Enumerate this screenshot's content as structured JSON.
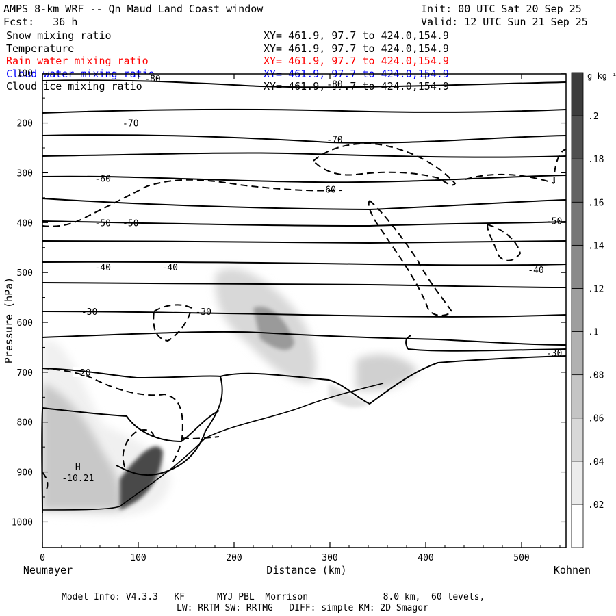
{
  "header": {
    "title": "AMPS 8-km WRF -- Qn Maud Land Coast window",
    "init": "Init: 00 UTC Sat 20 Sep 25",
    "forecast": "Fcst:   36 h",
    "valid": "Valid: 12 UTC Sun 21 Sep 25"
  },
  "fields": [
    {
      "name": "Snow mixing ratio",
      "xy": "XY= 461.9, 97.7 to 424.0,154.9",
      "color": "#000000"
    },
    {
      "name": "Temperature",
      "xy": "XY= 461.9, 97.7 to 424.0,154.9",
      "color": "#000000"
    },
    {
      "name": "Rain water mixing ratio",
      "xy": "XY= 461.9, 97.7 to 424.0,154.9",
      "color": "#ff0000"
    },
    {
      "name": "Cloud water mixing ratio",
      "xy": "XY= 461.9, 97.7 to 424.0,154.9",
      "color": "#0000ff"
    },
    {
      "name": "Cloud ice mixing ratio",
      "xy": "XY= 461.9, 97.7 to 424.0,154.9",
      "color": "#000000"
    }
  ],
  "chart_data": {
    "type": "contour cross-section",
    "xlabel": "Distance (km)",
    "ylabel": "Pressure (hPa)",
    "x_ticks": [
      0,
      100,
      200,
      300,
      400,
      500
    ],
    "y_ticks": [
      100,
      200,
      300,
      400,
      500,
      600,
      700,
      800,
      900,
      1000
    ],
    "xlim": [
      0,
      545
    ],
    "ylim": [
      1050,
      100
    ],
    "x_endpoints": {
      "left": "Neumayer",
      "right": "Kohnen"
    },
    "colorbar": {
      "unit": "g kg⁻¹",
      "ticks": [
        ".02",
        ".04",
        ".06",
        ".08",
        ".1",
        ".12",
        ".14",
        ".16",
        ".18",
        ".2"
      ]
    },
    "temperature_labels": [
      {
        "text": "-80",
        "x": 115,
        "p": 111
      },
      {
        "text": "-80",
        "x": 305,
        "p": 122
      },
      {
        "text": "-70",
        "x": 92,
        "p": 200
      },
      {
        "text": "-70",
        "x": 305,
        "p": 233
      },
      {
        "text": "-60",
        "x": 63,
        "p": 311
      },
      {
        "text": "-60",
        "x": 298,
        "p": 333
      },
      {
        "text": "-50",
        "x": 63,
        "p": 400
      },
      {
        "text": "-50",
        "x": 92,
        "p": 400
      },
      {
        "text": "-50",
        "x": 534,
        "p": 396
      },
      {
        "text": "-40",
        "x": 63,
        "p": 489
      },
      {
        "text": "-40",
        "x": 133,
        "p": 489
      },
      {
        "text": "-40",
        "x": 515,
        "p": 494
      },
      {
        "text": "-30",
        "x": 49,
        "p": 578
      },
      {
        "text": "-30",
        "x": 168,
        "p": 578
      },
      {
        "text": "-30",
        "x": 534,
        "p": 661
      },
      {
        "text": "-20",
        "x": 42,
        "p": 700
      }
    ],
    "extremum": {
      "type": "H",
      "value": "-10.21",
      "x": 37,
      "p": 910
    }
  },
  "footer": {
    "line1": "Model Info: V4.3.3   KF      MYJ PBL  Morrison              8.0 km,  60 levels,",
    "line2": "LW: RRTM SW: RRTMG   DIFF: simple KM: 2D Smagor"
  }
}
